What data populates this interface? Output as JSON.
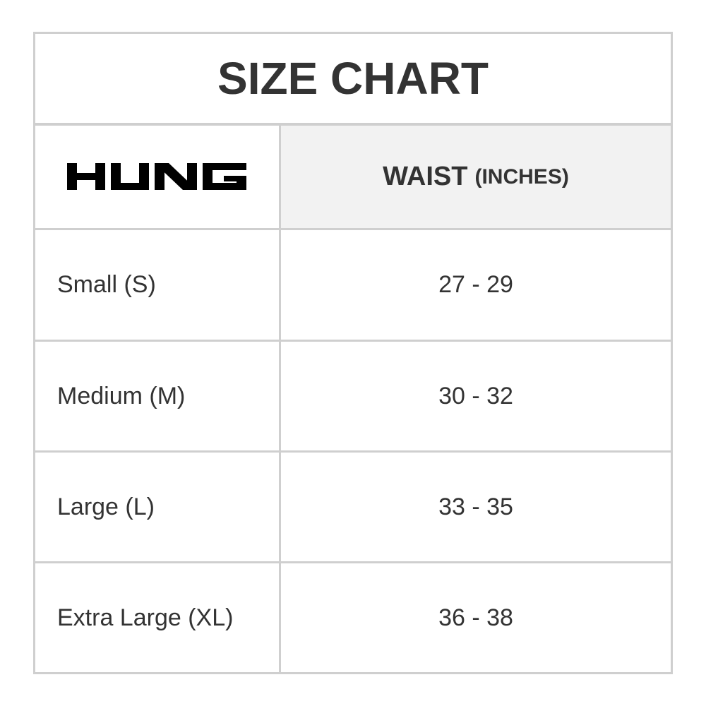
{
  "title": "SIZE CHART",
  "header": {
    "brand_logo": "HUNG",
    "column_label": "WAIST",
    "column_unit": "(INCHES)"
  },
  "rows": [
    {
      "size": "Small (S)",
      "waist": "27 - 29"
    },
    {
      "size": "Medium (M)",
      "waist": "30 - 32"
    },
    {
      "size": "Large (L)",
      "waist": "33 - 35"
    },
    {
      "size": "Extra Large (XL)",
      "waist": "36 - 38"
    }
  ]
}
